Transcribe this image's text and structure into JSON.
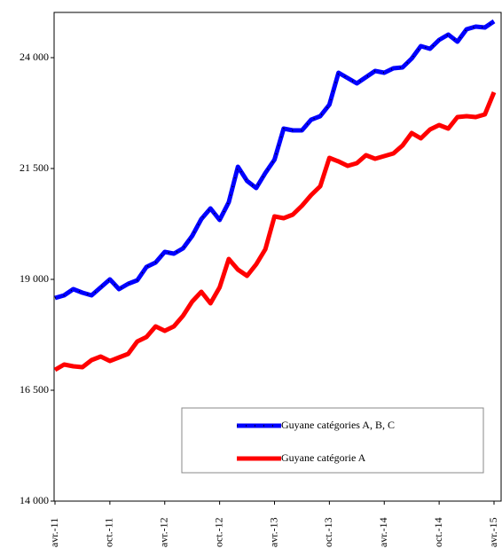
{
  "chart_data": {
    "type": "line",
    "categories": [
      "avr.-11",
      null,
      null,
      null,
      null,
      null,
      "oct.-11",
      null,
      null,
      null,
      null,
      null,
      "avr.-12",
      null,
      null,
      null,
      null,
      null,
      "oct.-12",
      null,
      null,
      null,
      null,
      null,
      "avr.-13",
      null,
      null,
      null,
      null,
      null,
      "oct.-13",
      null,
      null,
      null,
      null,
      null,
      "avr.-14",
      null,
      null,
      null,
      null,
      null,
      "oct.-14",
      null,
      null,
      null,
      null,
      null,
      "avr.-15"
    ],
    "series": [
      {
        "name": "Guyane catégories A, B, C",
        "color": "#0000ff",
        "dash_color": "#000000",
        "values": [
          18580,
          18640,
          18780,
          18700,
          18640,
          18820,
          19000,
          18780,
          18900,
          18980,
          19280,
          19380,
          19620,
          19580,
          19700,
          19980,
          20360,
          20600,
          20340,
          20740,
          21540,
          21220,
          21060,
          21400,
          21700,
          22400,
          22360,
          22360,
          22600,
          22680,
          22940,
          23660,
          23540,
          23420,
          23560,
          23700,
          23660,
          23760,
          23780,
          23980,
          24260,
          24200,
          24400,
          24520,
          24360,
          24640,
          24700,
          24680,
          24820
        ]
      },
      {
        "name": "Guyane catégorie A",
        "color": "#ff0000",
        "values": [
          16960,
          17080,
          17040,
          17020,
          17180,
          17260,
          17160,
          17240,
          17320,
          17600,
          17700,
          17940,
          17840,
          17940,
          18180,
          18500,
          18720,
          18460,
          18820,
          19460,
          19220,
          19080,
          19340,
          19680,
          20420,
          20380,
          20460,
          20660,
          20900,
          21100,
          21740,
          21660,
          21560,
          21620,
          21800,
          21720,
          21780,
          21840,
          22020,
          22300,
          22180,
          22380,
          22480,
          22400,
          22660,
          22680,
          22660,
          22720,
          23220
        ]
      }
    ],
    "ylim": [
      14000,
      25000
    ],
    "yticks": [
      {
        "value": 14000,
        "label": "14 000"
      },
      {
        "value": 16500,
        "label": "16 500"
      },
      {
        "value": 19000,
        "label": "19 000"
      },
      {
        "value": 21500,
        "label": "21 500"
      },
      {
        "value": 24000,
        "label": "24 000"
      }
    ],
    "grid": false,
    "legend": "lower right"
  }
}
